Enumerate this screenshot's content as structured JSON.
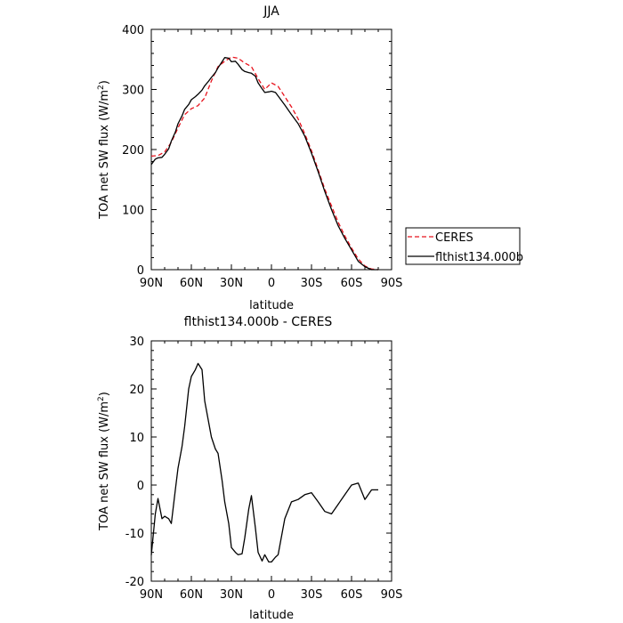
{
  "chart_data": [
    {
      "type": "line",
      "title": "JJA",
      "xlabel": "latitude",
      "ylabel": "TOA net SW flux (W/m",
      "ylabel_sup": "2",
      "ylabel_end": ")",
      "xlim": [
        90,
        -90
      ],
      "ylim": [
        0,
        400
      ],
      "x_ticks": [
        90,
        60,
        30,
        0,
        -30,
        -60,
        -90
      ],
      "x_tick_labels": [
        "90N",
        "60N",
        "30N",
        "0",
        "30S",
        "60S",
        "90S"
      ],
      "y_ticks": [
        0,
        100,
        200,
        300,
        400
      ],
      "y_tick_labels": [
        "0",
        "100",
        "200",
        "300",
        "400"
      ],
      "legend_placement": "outside-right",
      "series": [
        {
          "name": "CERES",
          "color": "#e8141e",
          "dash": true,
          "x": [
            90,
            85,
            80,
            75,
            70,
            65,
            60,
            55,
            50,
            45,
            40,
            35,
            30,
            25,
            20,
            15,
            10,
            5,
            0,
            -5,
            -10,
            -15,
            -20,
            -25,
            -30,
            -35,
            -40,
            -45,
            -50,
            -55,
            -60,
            -65,
            -70,
            -75,
            -80
          ],
          "y": [
            189,
            190,
            196,
            212,
            236,
            258,
            268,
            273,
            286,
            314,
            338,
            347,
            354,
            352,
            344,
            338,
            318,
            300,
            311,
            305,
            288,
            271,
            251,
            226,
            198,
            166,
            134,
            106,
            79,
            56,
            36,
            18,
            6,
            1,
            0
          ]
        },
        {
          "name": "flthist134.000b",
          "color": "#000000",
          "dash": false,
          "x": [
            90,
            87,
            85,
            82,
            80,
            77,
            75,
            72,
            70,
            67,
            65,
            62,
            60,
            57,
            55,
            52,
            50,
            47,
            45,
            42,
            40,
            37,
            35,
            32,
            30,
            27,
            25,
            22,
            20,
            17,
            15,
            12,
            10,
            7,
            5,
            2,
            0,
            -3,
            -5,
            -10,
            -15,
            -20,
            -25,
            -30,
            -35,
            -40,
            -45,
            -50,
            -55,
            -60,
            -65,
            -70,
            -75,
            -80
          ],
          "y": [
            175,
            184,
            186,
            187,
            192,
            201,
            214,
            229,
            243,
            256,
            267,
            275,
            283,
            288,
            292,
            299,
            306,
            314,
            320,
            328,
            336,
            346,
            353,
            352,
            346,
            347,
            342,
            333,
            330,
            328,
            327,
            322,
            311,
            301,
            295,
            296,
            297,
            295,
            289,
            274,
            258,
            243,
            222,
            194,
            163,
            130,
            100,
            73,
            52,
            33,
            14,
            5,
            0,
            0
          ]
        }
      ]
    },
    {
      "type": "line",
      "title": "flthist134.000b - CERES",
      "xlabel": "latitude",
      "ylabel": "TOA net SW flux (W/m",
      "ylabel_sup": "2",
      "ylabel_end": ")",
      "xlim": [
        90,
        -90
      ],
      "ylim": [
        -20,
        30
      ],
      "x_ticks": [
        90,
        60,
        30,
        0,
        -30,
        -60,
        -90
      ],
      "x_tick_labels": [
        "90N",
        "60N",
        "30N",
        "0",
        "30S",
        "60S",
        "90S"
      ],
      "y_ticks": [
        -20,
        -10,
        0,
        10,
        20,
        30
      ],
      "y_tick_labels": [
        "-20",
        "-10",
        "0",
        "10",
        "20",
        "30"
      ],
      "series": [
        {
          "color": "#000000",
          "dash": false,
          "x": [
            90,
            87,
            85,
            82,
            80,
            77,
            75,
            72,
            70,
            67,
            65,
            62,
            60,
            57,
            55,
            52,
            50,
            47,
            45,
            42,
            40,
            37,
            35,
            32,
            30,
            27,
            25,
            22,
            20,
            17,
            15,
            12,
            10,
            7,
            5,
            2,
            0,
            -3,
            -5,
            -10,
            -15,
            -20,
            -25,
            -30,
            -35,
            -40,
            -45,
            -50,
            -55,
            -60,
            -65,
            -70,
            -75,
            -80
          ],
          "y": [
            -14.6,
            -6,
            -2.8,
            -7,
            -6.5,
            -7,
            -8,
            -1,
            3.5,
            8,
            12.2,
            20,
            22.6,
            24,
            25.3,
            24,
            17.5,
            13,
            10,
            7.5,
            6.6,
            1,
            -3.5,
            -8,
            -13,
            -14,
            -14.5,
            -14.3,
            -11,
            -5,
            -2.2,
            -9,
            -14,
            -15.8,
            -14.5,
            -16,
            -16,
            -15,
            -14.5,
            -7,
            -3.5,
            -3,
            -2,
            -1.6,
            -3.5,
            -5.5,
            -6,
            -4,
            -2,
            0,
            0.4,
            -3,
            -1,
            -1
          ]
        }
      ]
    }
  ]
}
